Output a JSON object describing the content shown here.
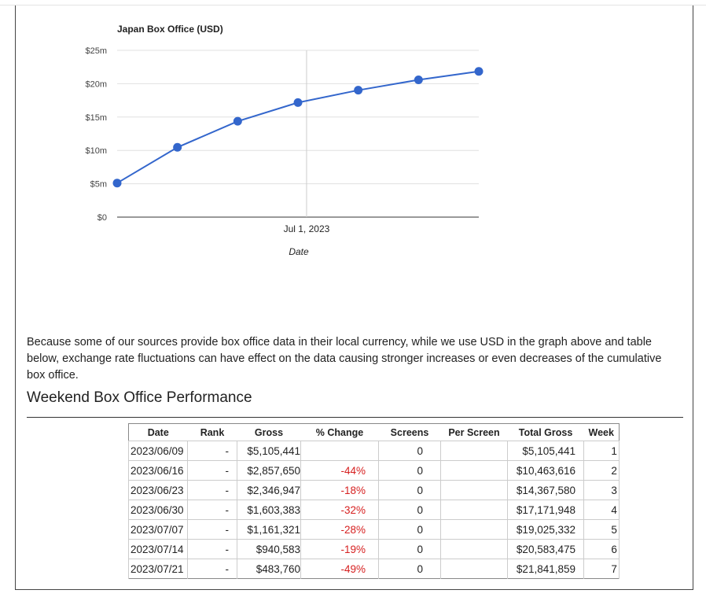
{
  "note": "Because some of our sources provide box office data in their local currency, while we use USD in the graph above and table below, exchange rate fluctuations can have effect on the data causing stronger increases or even decreases of the cumulative box office.",
  "section_title": "Weekend Box Office Performance",
  "table": {
    "headers": [
      "Date",
      "Rank",
      "Gross",
      "% Change",
      "Screens",
      "Per Screen",
      "Total Gross",
      "Week"
    ],
    "rows": [
      [
        "2023/06/09",
        "-",
        "$5,105,441",
        "",
        "0",
        "",
        "$5,105,441",
        "1"
      ],
      [
        "2023/06/16",
        "-",
        "$2,857,650",
        "-44%",
        "0",
        "",
        "$10,463,616",
        "2"
      ],
      [
        "2023/06/23",
        "-",
        "$2,346,947",
        "-18%",
        "0",
        "",
        "$14,367,580",
        "3"
      ],
      [
        "2023/06/30",
        "-",
        "$1,603,383",
        "-32%",
        "0",
        "",
        "$17,171,948",
        "4"
      ],
      [
        "2023/07/07",
        "-",
        "$1,161,321",
        "-28%",
        "0",
        "",
        "$19,025,332",
        "5"
      ],
      [
        "2023/07/14",
        "-",
        "$940,583",
        "-19%",
        "0",
        "",
        "$20,583,475",
        "6"
      ],
      [
        "2023/07/21",
        "-",
        "$483,760",
        "-49%",
        "0",
        "",
        "$21,841,859",
        "7"
      ]
    ]
  },
  "chart_data": {
    "type": "line",
    "title": "Japan Box Office (USD)",
    "xlabel": "Date",
    "ylabel": "",
    "x": [
      "2023-06-09",
      "2023-06-16",
      "2023-06-23",
      "2023-06-30",
      "2023-07-07",
      "2023-07-14",
      "2023-07-21"
    ],
    "series": [
      {
        "values": [
          5105441,
          10463616,
          14367580,
          17171948,
          19025332,
          20583475,
          21841859
        ]
      }
    ],
    "xticks": [
      {
        "date": "2023-07-01",
        "label": "Jul 1, 2023"
      }
    ],
    "yticks": [
      {
        "value": 0,
        "label": "$0"
      },
      {
        "value": 5000000,
        "label": "$5m"
      },
      {
        "value": 10000000,
        "label": "$10m"
      },
      {
        "value": 15000000,
        "label": "$15m"
      },
      {
        "value": 20000000,
        "label": "$20m"
      },
      {
        "value": 25000000,
        "label": "$25m"
      }
    ],
    "ylim": [
      0,
      25000000
    ],
    "grid": true,
    "line_color": "#3366cc"
  }
}
